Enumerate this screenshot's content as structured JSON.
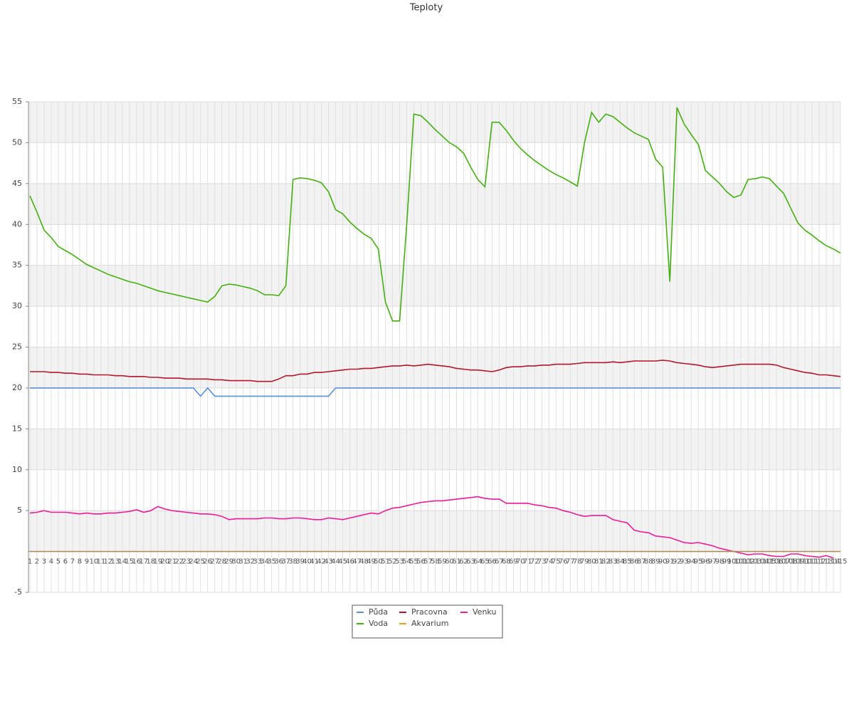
{
  "chart_data": {
    "type": "line",
    "title": "Teploty",
    "categories": [
      1,
      2,
      3,
      4,
      5,
      6,
      7,
      8,
      9,
      10,
      11,
      12,
      13,
      14,
      15,
      16,
      17,
      18,
      19,
      20,
      21,
      22,
      23,
      24,
      25,
      26,
      27,
      28,
      29,
      30,
      31,
      32,
      33,
      34,
      35,
      36,
      37,
      38,
      39,
      40,
      41,
      42,
      43,
      44,
      45,
      46,
      47,
      48,
      49,
      50,
      51,
      52,
      53,
      54,
      55,
      56,
      57,
      58,
      59,
      60,
      61,
      62,
      63,
      64,
      65,
      66,
      67,
      68,
      69,
      70,
      71,
      72,
      73,
      74,
      75,
      76,
      77,
      78,
      79,
      80,
      81,
      82,
      83,
      84,
      85,
      86,
      87,
      88,
      89,
      90,
      91,
      92,
      93,
      94,
      95,
      96,
      97,
      98,
      99,
      100,
      101,
      102,
      103,
      104,
      105,
      106,
      107,
      108,
      109,
      110,
      111,
      112,
      113,
      114,
      115
    ],
    "ylim": [
      -5,
      55
    ],
    "yticks": [
      55,
      50,
      45,
      40,
      35,
      30,
      25,
      20,
      15,
      10,
      5,
      -5
    ],
    "grid": true,
    "legend": "bottom",
    "series": [
      {
        "name": "Půda",
        "color": "#5b8fe0",
        "values": [
          20,
          20,
          20,
          20,
          20,
          20,
          20,
          20,
          20,
          20,
          20,
          20,
          20,
          20,
          20,
          20,
          20,
          20,
          20,
          20,
          20,
          20,
          20,
          20,
          19,
          20,
          19,
          19,
          19,
          19,
          19,
          19,
          19,
          19,
          19,
          19,
          19,
          19,
          19,
          19,
          19,
          19,
          19,
          20,
          20,
          20,
          20,
          20,
          20,
          20,
          20,
          20,
          20,
          20,
          20,
          20,
          20,
          20,
          20,
          20,
          20,
          20,
          20,
          20,
          20,
          20,
          20,
          20,
          20,
          20,
          20,
          20,
          20,
          20,
          20,
          20,
          20,
          20,
          20,
          20,
          20,
          20,
          20,
          20,
          20,
          20,
          20,
          20,
          20,
          20,
          20,
          20,
          20,
          20,
          20,
          20,
          20,
          20,
          20,
          20,
          20,
          20,
          20,
          20,
          20,
          20,
          20,
          20,
          20,
          20,
          20,
          20,
          20,
          20,
          20
        ]
      },
      {
        "name": "Pracovna",
        "color": "#b5162b",
        "values": [
          22.0,
          22.0,
          22.0,
          21.9,
          21.9,
          21.8,
          21.8,
          21.7,
          21.7,
          21.6,
          21.6,
          21.6,
          21.5,
          21.5,
          21.4,
          21.4,
          21.4,
          21.3,
          21.3,
          21.2,
          21.2,
          21.2,
          21.1,
          21.1,
          21.1,
          21.1,
          21.0,
          21.0,
          20.9,
          20.9,
          20.9,
          20.9,
          20.8,
          20.8,
          20.8,
          21.1,
          21.5,
          21.5,
          21.7,
          21.7,
          21.9,
          21.9,
          22.0,
          22.1,
          22.2,
          22.3,
          22.3,
          22.4,
          22.4,
          22.5,
          22.6,
          22.7,
          22.7,
          22.8,
          22.7,
          22.8,
          22.9,
          22.8,
          22.7,
          22.6,
          22.4,
          22.3,
          22.2,
          22.2,
          22.1,
          22.0,
          22.2,
          22.5,
          22.6,
          22.6,
          22.7,
          22.7,
          22.8,
          22.8,
          22.9,
          22.9,
          22.9,
          23.0,
          23.1,
          23.1,
          23.1,
          23.1,
          23.2,
          23.1,
          23.2,
          23.3,
          23.3,
          23.3,
          23.3,
          23.4,
          23.3,
          23.1,
          23.0,
          22.9,
          22.8,
          22.6,
          22.5,
          22.6,
          22.7,
          22.8,
          22.9,
          22.9,
          22.9,
          22.9,
          22.9,
          22.8,
          22.5,
          22.3,
          22.1,
          21.9,
          21.8,
          21.6,
          21.6,
          21.5,
          21.4
        ]
      },
      {
        "name": "Venku",
        "color": "#ee1a99",
        "values": [
          4.7,
          4.8,
          5.0,
          4.8,
          4.8,
          4.8,
          4.7,
          4.6,
          4.7,
          4.6,
          4.6,
          4.7,
          4.7,
          4.8,
          4.9,
          5.1,
          4.8,
          5.0,
          5.5,
          5.2,
          5.0,
          4.9,
          4.8,
          4.7,
          4.6,
          4.6,
          4.5,
          4.3,
          3.9,
          4.0,
          4.0,
          4.0,
          4.0,
          4.1,
          4.1,
          4.0,
          4.0,
          4.1,
          4.1,
          4.0,
          3.9,
          3.9,
          4.1,
          4.0,
          3.9,
          4.1,
          4.3,
          4.5,
          4.7,
          4.6,
          5.0,
          5.3,
          5.4,
          5.6,
          5.8,
          6.0,
          6.1,
          6.2,
          6.2,
          6.3,
          6.4,
          6.5,
          6.6,
          6.7,
          6.5,
          6.4,
          6.4,
          5.9,
          5.9,
          5.9,
          5.9,
          5.7,
          5.6,
          5.4,
          5.3,
          5.0,
          4.8,
          4.5,
          4.3,
          4.4,
          4.4,
          4.4,
          3.9,
          3.7,
          3.5,
          2.6,
          2.4,
          2.3,
          1.9,
          1.8,
          1.7,
          1.4,
          1.1,
          1.0,
          1.1,
          0.9,
          0.7,
          0.4,
          0.2,
          0.0,
          -0.2,
          -0.4,
          -0.3,
          -0.3,
          -0.5,
          -0.6,
          -0.6,
          -0.3,
          -0.3,
          -0.5,
          -0.6,
          -0.7,
          -0.5,
          -0.8,
          null
        ]
      },
      {
        "name": "Voda",
        "color": "#44b010",
        "values": [
          43.5,
          41.5,
          39.3,
          38.4,
          37.3,
          36.8,
          36.3,
          35.7,
          35.1,
          34.7,
          34.3,
          33.9,
          33.6,
          33.3,
          33.0,
          32.8,
          32.5,
          32.2,
          31.9,
          31.7,
          31.5,
          31.3,
          31.1,
          30.9,
          30.7,
          30.5,
          31.2,
          32.5,
          32.7,
          32.6,
          32.4,
          32.2,
          31.9,
          31.4,
          31.4,
          31.3,
          32.5,
          45.5,
          45.7,
          45.6,
          45.4,
          45.1,
          44.0,
          41.8,
          41.3,
          40.3,
          39.5,
          38.8,
          38.3,
          37.0,
          30.5,
          28.2,
          28.2,
          40.0,
          53.5,
          53.3,
          52.5,
          51.6,
          50.8,
          50.0,
          49.5,
          48.7,
          47.0,
          45.5,
          44.6,
          52.5,
          52.5,
          51.5,
          50.3,
          49.3,
          48.5,
          47.8,
          47.2,
          46.6,
          46.1,
          45.7,
          45.2,
          44.7,
          50.0,
          53.7,
          52.5,
          53.5,
          53.2,
          52.5,
          51.8,
          51.2,
          50.8,
          50.4,
          48.0,
          47.0,
          33.0,
          54.3,
          52.3,
          51.0,
          49.8,
          46.6,
          45.8,
          45.0,
          44.0,
          43.3,
          43.6,
          45.5,
          45.6,
          45.8,
          45.6,
          44.7,
          43.8,
          42.0,
          40.2,
          39.3,
          38.7,
          38.0,
          37.4,
          37.0,
          36.5
        ]
      },
      {
        "name": "Akvarium",
        "color": "#f0a020",
        "values": [
          0,
          0,
          0,
          0,
          0,
          0,
          0,
          0,
          0,
          0,
          0,
          0,
          0,
          0,
          0,
          0,
          0,
          0,
          0,
          0,
          0,
          0,
          0,
          0,
          0,
          0,
          0,
          0,
          0,
          0,
          0,
          0,
          0,
          0,
          0,
          0,
          0,
          0,
          0,
          0,
          0,
          0,
          0,
          0,
          0,
          0,
          0,
          0,
          0,
          0,
          0,
          0,
          0,
          0,
          0,
          0,
          0,
          0,
          0,
          0,
          0,
          0,
          0,
          0,
          0,
          0,
          0,
          0,
          0,
          0,
          0,
          0,
          0,
          0,
          0,
          0,
          0,
          0,
          0,
          0,
          0,
          0,
          0,
          0,
          0,
          0,
          0,
          0,
          0,
          0,
          0,
          0,
          0,
          0,
          0,
          0,
          0,
          0,
          0,
          0,
          0,
          0,
          0,
          0,
          0,
          0,
          0,
          0,
          0,
          0,
          0,
          0,
          0,
          0,
          0
        ]
      }
    ]
  }
}
